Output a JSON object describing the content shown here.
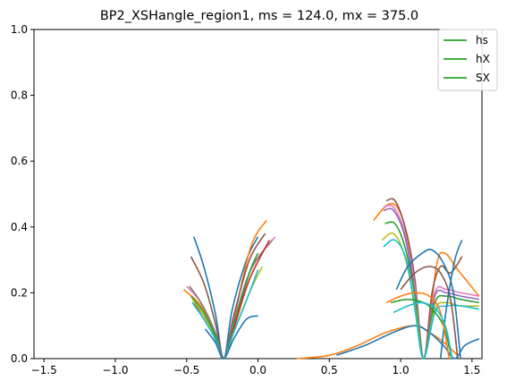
{
  "chart_data": {
    "type": "line",
    "title": "BP2_XSHangle_region1, ms = 124.0, mx = 375.0",
    "xlabel": "",
    "ylabel": "",
    "xlim": [
      -1.57,
      1.57
    ],
    "ylim": [
      0.0,
      1.0
    ],
    "xticks": [
      -1.5,
      -1.0,
      -0.5,
      0.0,
      0.5,
      1.0,
      1.5
    ],
    "xtick_labels": [
      "−1.5",
      "−1.0",
      "−0.5",
      "0.0",
      "0.5",
      "1.0",
      "1.5"
    ],
    "yticks": [
      0.0,
      0.2,
      0.4,
      0.6,
      0.8,
      1.0
    ],
    "ytick_labels": [
      "0.0",
      "0.2",
      "0.4",
      "0.6",
      "0.8",
      "1.0"
    ],
    "grid": false,
    "legend": {
      "placement": "top-right",
      "entries": [
        {
          "label": "hs",
          "color": "#2ca02c"
        },
        {
          "label": "hX",
          "color": "#2ca02c"
        },
        {
          "label": "SX",
          "color": "#2ca02c"
        }
      ]
    },
    "series": [
      {
        "color": "#1f77b4",
        "points": [
          [
            -0.45,
            0.37
          ],
          [
            -0.38,
            0.28
          ],
          [
            -0.3,
            0.14
          ],
          [
            -0.24,
            0.0
          ],
          [
            -0.18,
            0.15
          ],
          [
            -0.08,
            0.3
          ],
          [
            0.0,
            0.37
          ]
        ]
      },
      {
        "color": "#ff7f0e",
        "points": [
          [
            -0.52,
            0.21
          ],
          [
            -0.4,
            0.16
          ],
          [
            -0.3,
            0.07
          ],
          [
            -0.24,
            0.0
          ],
          [
            -0.17,
            0.12
          ],
          [
            -0.05,
            0.34
          ],
          [
            0.06,
            0.42
          ]
        ]
      },
      {
        "color": "#8c564b",
        "points": [
          [
            -0.47,
            0.31
          ],
          [
            -0.38,
            0.23
          ],
          [
            -0.3,
            0.11
          ],
          [
            -0.24,
            0.0
          ],
          [
            -0.17,
            0.13
          ],
          [
            -0.06,
            0.3
          ],
          [
            0.05,
            0.38
          ]
        ]
      },
      {
        "color": "#e377c2",
        "points": [
          [
            -0.5,
            0.22
          ],
          [
            -0.4,
            0.17
          ],
          [
            -0.3,
            0.08
          ],
          [
            -0.24,
            0.0
          ],
          [
            -0.17,
            0.11
          ],
          [
            -0.05,
            0.27
          ],
          [
            0.12,
            0.37
          ]
        ]
      },
      {
        "color": "#7f7f7f",
        "points": [
          [
            -0.48,
            0.22
          ],
          [
            -0.4,
            0.17
          ],
          [
            -0.3,
            0.08
          ],
          [
            -0.24,
            0.0
          ],
          [
            -0.17,
            0.11
          ],
          [
            -0.05,
            0.27
          ],
          [
            0.1,
            0.36
          ]
        ]
      },
      {
        "color": "#2ca02c",
        "points": [
          [
            -0.47,
            0.19
          ],
          [
            -0.38,
            0.14
          ],
          [
            -0.3,
            0.07
          ],
          [
            -0.24,
            0.0
          ],
          [
            -0.17,
            0.1
          ],
          [
            -0.06,
            0.26
          ],
          [
            0.0,
            0.32
          ]
        ]
      },
      {
        "color": "#d62728",
        "points": [
          [
            -0.46,
            0.17
          ],
          [
            -0.38,
            0.13
          ],
          [
            -0.3,
            0.06
          ],
          [
            -0.24,
            0.0
          ],
          [
            -0.17,
            0.09
          ],
          [
            -0.06,
            0.24
          ],
          [
            0.08,
            0.36
          ]
        ]
      },
      {
        "color": "#bcbd22",
        "points": [
          [
            -0.46,
            0.18
          ],
          [
            -0.38,
            0.13
          ],
          [
            -0.3,
            0.06
          ],
          [
            -0.24,
            0.0
          ],
          [
            -0.17,
            0.08
          ],
          [
            -0.06,
            0.2
          ],
          [
            0.03,
            0.28
          ]
        ]
      },
      {
        "color": "#17becf",
        "points": [
          [
            -0.46,
            0.17
          ],
          [
            -0.38,
            0.12
          ],
          [
            -0.3,
            0.06
          ],
          [
            -0.24,
            0.0
          ],
          [
            -0.17,
            0.08
          ],
          [
            -0.06,
            0.2
          ],
          [
            0.0,
            0.27
          ]
        ]
      },
      {
        "color": "#1f77b4",
        "points": [
          [
            -0.37,
            0.09
          ],
          [
            -0.3,
            0.05
          ],
          [
            -0.24,
            0.0
          ],
          [
            -0.17,
            0.06
          ],
          [
            -0.08,
            0.12
          ],
          [
            0.0,
            0.13
          ]
        ]
      },
      {
        "color": "#ff7f0e",
        "points": [
          [
            0.27,
            0.0
          ],
          [
            0.5,
            0.01
          ],
          [
            0.7,
            0.04
          ],
          [
            0.9,
            0.08
          ],
          [
            1.1,
            0.1
          ],
          [
            1.2,
            0.08
          ],
          [
            1.3,
            0.05
          ],
          [
            1.4,
            0.01
          ]
        ]
      },
      {
        "color": "#1f77b4",
        "points": [
          [
            0.55,
            0.01
          ],
          [
            0.75,
            0.04
          ],
          [
            0.95,
            0.08
          ],
          [
            1.1,
            0.1
          ],
          [
            1.2,
            0.08
          ],
          [
            1.3,
            0.04
          ],
          [
            1.38,
            0.0
          ],
          [
            1.45,
            0.04
          ],
          [
            1.55,
            0.06
          ]
        ]
      },
      {
        "color": "#ff7f0e",
        "points": [
          [
            0.81,
            0.42
          ],
          [
            0.92,
            0.47
          ],
          [
            1.0,
            0.44
          ],
          [
            1.08,
            0.3
          ],
          [
            1.16,
            0.0
          ],
          [
            1.25,
            0.28
          ],
          [
            1.31,
            0.32
          ],
          [
            1.4,
            0.27
          ],
          [
            1.55,
            0.19
          ]
        ]
      },
      {
        "color": "#8c564b",
        "points": [
          [
            0.9,
            0.48
          ],
          [
            0.96,
            0.48
          ],
          [
            1.03,
            0.4
          ],
          [
            1.1,
            0.24
          ],
          [
            1.16,
            0.0
          ],
          [
            1.22,
            0.2
          ],
          [
            1.28,
            0.28
          ],
          [
            1.35,
            0.26
          ],
          [
            1.43,
            0.31
          ]
        ]
      },
      {
        "color": "#e377c2",
        "points": [
          [
            0.88,
            0.46
          ],
          [
            0.95,
            0.46
          ],
          [
            1.03,
            0.38
          ],
          [
            1.1,
            0.22
          ],
          [
            1.16,
            0.0
          ],
          [
            1.24,
            0.2
          ],
          [
            1.32,
            0.21
          ],
          [
            1.42,
            0.2
          ],
          [
            1.55,
            0.19
          ]
        ]
      },
      {
        "color": "#9467bd",
        "points": [
          [
            0.88,
            0.45
          ],
          [
            0.95,
            0.45
          ],
          [
            1.03,
            0.37
          ],
          [
            1.1,
            0.2
          ],
          [
            1.16,
            0.0
          ],
          [
            1.24,
            0.19
          ],
          [
            1.32,
            0.2
          ],
          [
            1.42,
            0.19
          ],
          [
            1.55,
            0.18
          ]
        ]
      },
      {
        "color": "#2ca02c",
        "points": [
          [
            0.89,
            0.41
          ],
          [
            0.96,
            0.41
          ],
          [
            1.03,
            0.34
          ],
          [
            1.1,
            0.19
          ],
          [
            1.16,
            0.0
          ],
          [
            1.24,
            0.17
          ],
          [
            1.32,
            0.19
          ],
          [
            1.42,
            0.18
          ],
          [
            1.55,
            0.17
          ]
        ]
      },
      {
        "color": "#bcbd22",
        "points": [
          [
            0.87,
            0.36
          ],
          [
            0.95,
            0.38
          ],
          [
            1.03,
            0.31
          ],
          [
            1.1,
            0.16
          ],
          [
            1.16,
            0.0
          ],
          [
            1.24,
            0.15
          ],
          [
            1.32,
            0.17
          ],
          [
            1.42,
            0.16
          ],
          [
            1.55,
            0.16
          ]
        ]
      },
      {
        "color": "#17becf",
        "points": [
          [
            0.88,
            0.34
          ],
          [
            0.96,
            0.36
          ],
          [
            1.04,
            0.3
          ],
          [
            1.1,
            0.15
          ],
          [
            1.16,
            0.0
          ],
          [
            1.24,
            0.14
          ],
          [
            1.32,
            0.16
          ],
          [
            1.42,
            0.16
          ],
          [
            1.55,
            0.15
          ]
        ]
      },
      {
        "color": "#1f77b4",
        "points": [
          [
            0.97,
            0.21
          ],
          [
            1.05,
            0.28
          ],
          [
            1.15,
            0.32
          ],
          [
            1.22,
            0.33
          ],
          [
            1.3,
            0.29
          ],
          [
            1.37,
            0.2
          ],
          [
            1.42,
            0.0
          ]
        ]
      },
      {
        "color": "#8c564b",
        "points": [
          [
            1.0,
            0.21
          ],
          [
            1.1,
            0.26
          ],
          [
            1.2,
            0.28
          ],
          [
            1.28,
            0.26
          ],
          [
            1.35,
            0.18
          ],
          [
            1.4,
            0.0
          ]
        ]
      },
      {
        "color": "#1f77b4",
        "points": [
          [
            1.43,
            0.36
          ],
          [
            1.38,
            0.3
          ],
          [
            1.32,
            0.15
          ],
          [
            1.28,
            0.0
          ]
        ]
      },
      {
        "color": "#2ca02c",
        "points": [
          [
            0.93,
            0.17
          ],
          [
            1.05,
            0.18
          ],
          [
            1.16,
            0.17
          ],
          [
            1.22,
            0.15
          ],
          [
            1.3,
            0.1
          ],
          [
            1.36,
            0.0
          ]
        ]
      },
      {
        "color": "#ff7f0e",
        "points": [
          [
            0.9,
            0.17
          ],
          [
            1.0,
            0.19
          ],
          [
            1.1,
            0.2
          ],
          [
            1.2,
            0.19
          ],
          [
            1.28,
            0.14
          ],
          [
            1.34,
            0.0
          ]
        ]
      },
      {
        "color": "#17becf",
        "points": [
          [
            0.95,
            0.14
          ],
          [
            1.05,
            0.16
          ],
          [
            1.15,
            0.17
          ],
          [
            1.25,
            0.15
          ],
          [
            1.32,
            0.09
          ],
          [
            1.36,
            0.0
          ]
        ]
      }
    ]
  }
}
